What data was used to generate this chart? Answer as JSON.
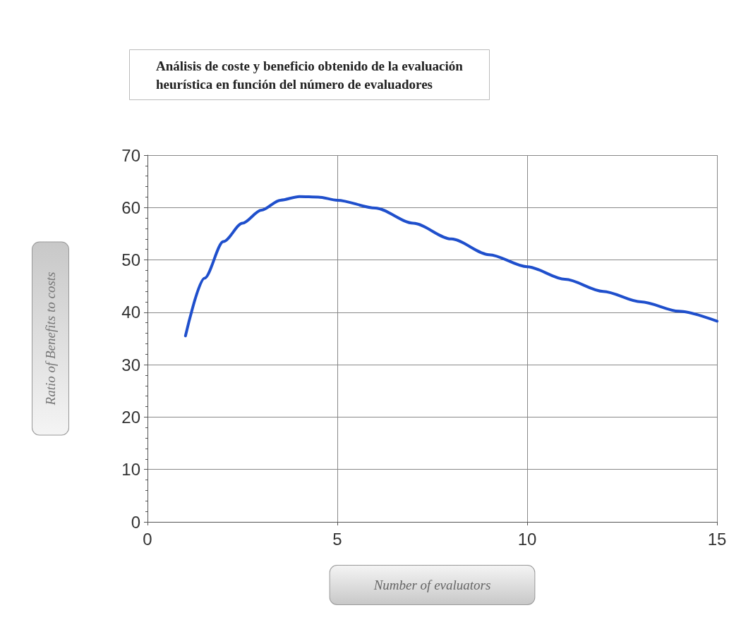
{
  "chart_data": {
    "type": "line",
    "title": "Análisis de coste y beneficio obtenido de la evaluación\nheurística en función del número de evaluadores",
    "xlabel": "Number of evaluators",
    "ylabel": "Ratio of Benefits to costs",
    "series": [
      {
        "color": "#1f4fcc",
        "x": [
          1,
          1.5,
          2,
          2.5,
          3,
          3.5,
          4,
          4.5,
          5,
          6,
          7,
          8,
          9,
          10,
          11,
          12,
          13,
          14,
          15
        ],
        "values": [
          35.5,
          46.5,
          53.5,
          57,
          59.5,
          61.4,
          62.1,
          62,
          61.4,
          59.9,
          57,
          54,
          51,
          48.7,
          46.3,
          44,
          42,
          40.2,
          38.3
        ]
      }
    ],
    "xlim": [
      0,
      15
    ],
    "xticks": [
      0,
      5,
      10,
      15
    ],
    "ylim": [
      0,
      70
    ],
    "yticks": [
      0,
      10,
      20,
      30,
      40,
      50,
      60,
      70
    ],
    "grid": true,
    "marker": "none",
    "line_style": "solid"
  }
}
